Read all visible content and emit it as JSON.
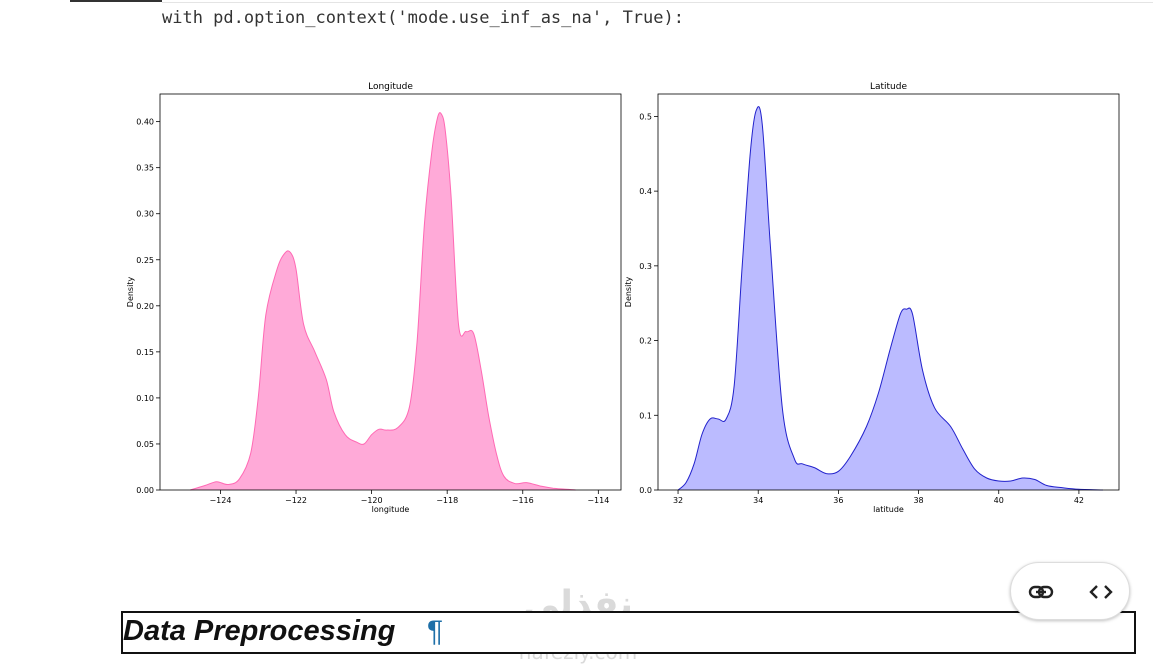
{
  "code": {
    "line": "with pd.option_context('mode.use_inf_as_na', True):"
  },
  "chart_data": [
    {
      "type": "area",
      "title": "Longitude",
      "xlabel": "longitude",
      "ylabel": "Density",
      "color": "#ff69b4",
      "fill": "#ffaad8",
      "xlim": [
        -125.6,
        -113.4
      ],
      "ylim": [
        0,
        0.43
      ],
      "xticks": [
        -124,
        -122,
        -120,
        -118,
        -116,
        -114
      ],
      "xtick_labels": [
        "−124",
        "−122",
        "−120",
        "−118",
        "−116",
        "−114"
      ],
      "yticks": [
        0,
        0.05,
        0.1,
        0.15,
        0.2,
        0.25,
        0.3,
        0.35,
        0.4
      ],
      "ytick_labels": [
        "0.00",
        "0.05",
        "0.10",
        "0.15",
        "0.20",
        "0.25",
        "0.30",
        "0.35",
        "0.40"
      ],
      "x": [
        -124.8,
        -124.4,
        -124.1,
        -123.8,
        -123.5,
        -123.2,
        -123.0,
        -122.8,
        -122.5,
        -122.3,
        -122.15,
        -122.0,
        -121.8,
        -121.5,
        -121.2,
        -121.0,
        -120.7,
        -120.4,
        -120.2,
        -120.0,
        -119.8,
        -119.6,
        -119.3,
        -119.0,
        -118.8,
        -118.6,
        -118.4,
        -118.25,
        -118.15,
        -118.05,
        -117.9,
        -117.7,
        -117.5,
        -117.3,
        -117.1,
        -116.9,
        -116.7,
        -116.5,
        -116.2,
        -115.9,
        -115.5,
        -115.2,
        -114.9,
        -114.6
      ],
      "y": [
        0.0,
        0.005,
        0.009,
        0.006,
        0.012,
        0.04,
        0.1,
        0.19,
        0.24,
        0.257,
        0.258,
        0.24,
        0.18,
        0.15,
        0.12,
        0.085,
        0.06,
        0.052,
        0.05,
        0.06,
        0.066,
        0.065,
        0.068,
        0.09,
        0.16,
        0.29,
        0.37,
        0.405,
        0.408,
        0.39,
        0.32,
        0.18,
        0.172,
        0.17,
        0.13,
        0.08,
        0.04,
        0.015,
        0.007,
        0.008,
        0.004,
        0.002,
        0.001,
        0.0
      ]
    },
    {
      "type": "area",
      "title": "Latitude",
      "xlabel": "latitude",
      "ylabel": "Density",
      "color": "#2222cc",
      "fill": "#bbbbff",
      "xlim": [
        31.5,
        43.0
      ],
      "ylim": [
        0,
        0.53
      ],
      "xticks": [
        32,
        34,
        36,
        38,
        40,
        42
      ],
      "xtick_labels": [
        "32",
        "34",
        "36",
        "38",
        "40",
        "42"
      ],
      "yticks": [
        0,
        0.1,
        0.2,
        0.3,
        0.4,
        0.5
      ],
      "ytick_labels": [
        "0.0",
        "0.1",
        "0.2",
        "0.3",
        "0.4",
        "0.5"
      ],
      "x": [
        32.0,
        32.2,
        32.4,
        32.6,
        32.8,
        33.0,
        33.2,
        33.4,
        33.6,
        33.8,
        33.95,
        34.1,
        34.3,
        34.6,
        34.9,
        35.1,
        35.4,
        35.7,
        36.0,
        36.3,
        36.7,
        37.0,
        37.3,
        37.55,
        37.7,
        37.85,
        38.1,
        38.4,
        38.8,
        39.1,
        39.4,
        39.7,
        40.0,
        40.3,
        40.6,
        40.9,
        41.2,
        41.6,
        42.0,
        42.6
      ],
      "y": [
        0.0,
        0.01,
        0.035,
        0.075,
        0.095,
        0.095,
        0.095,
        0.14,
        0.3,
        0.45,
        0.508,
        0.49,
        0.33,
        0.11,
        0.042,
        0.035,
        0.03,
        0.022,
        0.025,
        0.045,
        0.085,
        0.13,
        0.19,
        0.236,
        0.242,
        0.235,
        0.16,
        0.11,
        0.085,
        0.055,
        0.028,
        0.016,
        0.012,
        0.012,
        0.016,
        0.014,
        0.006,
        0.003,
        0.001,
        0.0
      ]
    }
  ],
  "section": {
    "heading": "Data Preprocessing",
    "anchor": "¶"
  },
  "toolbar": {
    "link_icon": "link-icon",
    "code_icon": "code-icon"
  },
  "watermark": {
    "arabic": "نفذلي",
    "latin": "nafezly.com"
  }
}
